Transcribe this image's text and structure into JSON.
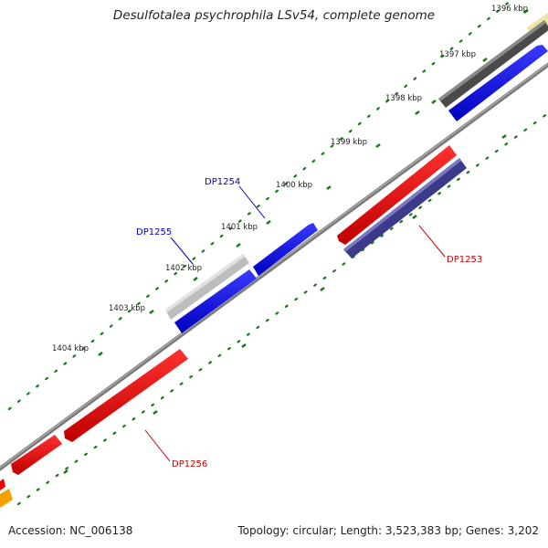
{
  "title": "Desulfotalea psychrophila LSv54, complete genome",
  "accession": "Accession: NC_006138",
  "summary": "Topology: circular; Length: 3,523,383 bp; Genes: 3,202",
  "ticks": [
    {
      "label": "1396 kbp"
    },
    {
      "label": "1397 kbp"
    },
    {
      "label": "1398 kbp"
    },
    {
      "label": "1399 kbp"
    },
    {
      "label": "1400 kbp"
    },
    {
      "label": "1401 kbp"
    },
    {
      "label": "1402 kbp"
    },
    {
      "label": "1403 kbp"
    },
    {
      "label": "1404 kbp"
    }
  ],
  "gene_labels": [
    {
      "text": "DP1254",
      "color": "#0000cc"
    },
    {
      "text": "DP1255",
      "color": "#0000cc"
    },
    {
      "text": "DP1253",
      "color": "#cc0000"
    },
    {
      "text": "DP1256",
      "color": "#cc0000"
    }
  ],
  "colors": {
    "backbone": "#808080",
    "tick": "#1a7a1a",
    "forward_cds": "#0000ee",
    "reverse_cds": "#ee0000",
    "gray_feature": "#555555",
    "light_gray_feature": "#c8c8c8",
    "purple_feature": "#3d3a8c",
    "yellow_feature": "#f0e6a0",
    "orange_feature": "#f5a000"
  }
}
